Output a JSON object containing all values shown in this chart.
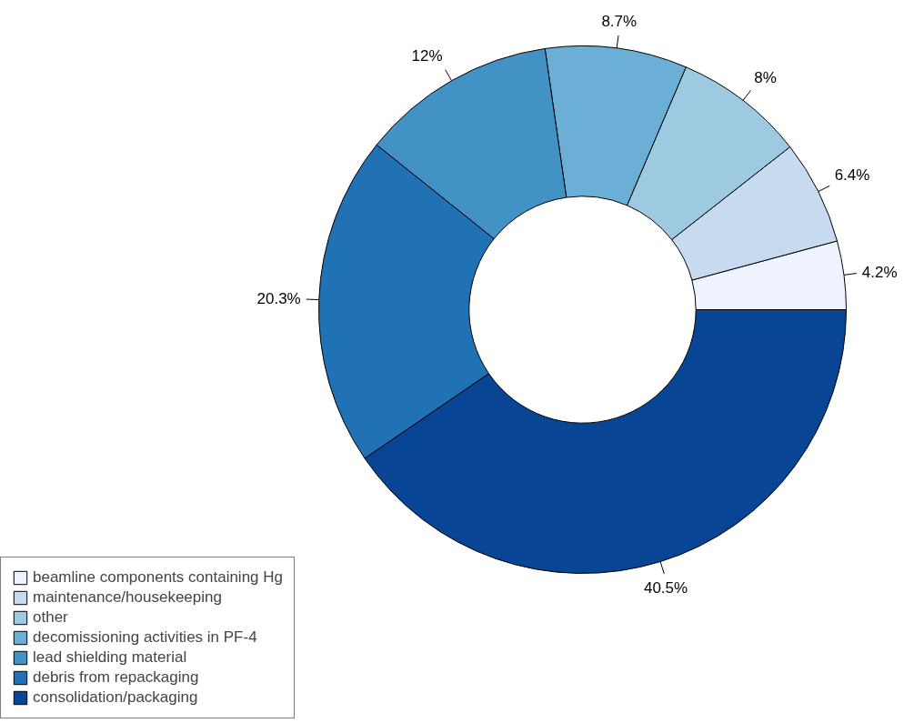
{
  "chart_data": {
    "type": "donut",
    "categories": [
      "beamline components containing Hg",
      "maintenance/housekeeping",
      "other",
      "decomissioning activities in PF-4",
      "lead shielding material",
      "debris from repackaging",
      "consolidation/packaging"
    ],
    "values": [
      4.2,
      6.4,
      8,
      8.7,
      12,
      20.3,
      40.5
    ],
    "value_labels": [
      "4.2%",
      "6.4%",
      "8%",
      "8.7%",
      "12%",
      "20.3%",
      "40.5%"
    ],
    "colors": [
      "#eff3ff",
      "#c6dbef",
      "#9ecae1",
      "#6baed6",
      "#4292c6",
      "#2171b5",
      "#084594"
    ],
    "legend": "bottom left"
  }
}
